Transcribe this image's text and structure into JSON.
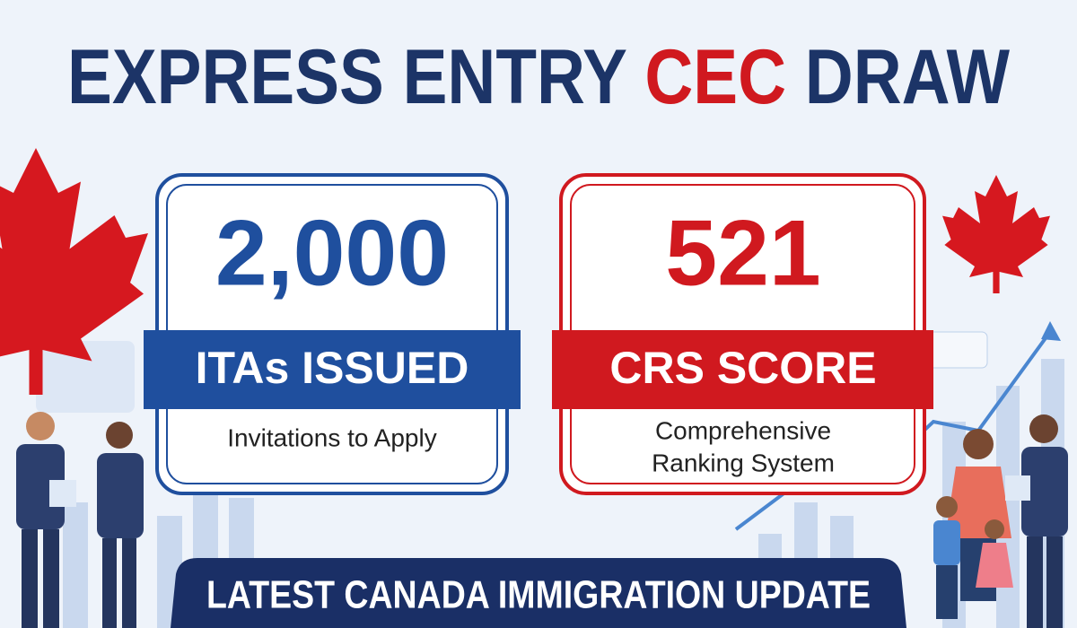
{
  "title": {
    "part1": "EXPRESS ENTRY",
    "highlight": "CEC",
    "part2": "DRAW"
  },
  "cards": [
    {
      "number": "2,000",
      "label": "ITAs ISSUED",
      "caption": [
        "Invitations to Apply"
      ]
    },
    {
      "number": "521",
      "label": "CRS SCORE",
      "caption": [
        "Comprehensive",
        "Ranking System"
      ]
    }
  ],
  "banner": "LATEST CANADA IMMIGRATION UPDATE"
}
